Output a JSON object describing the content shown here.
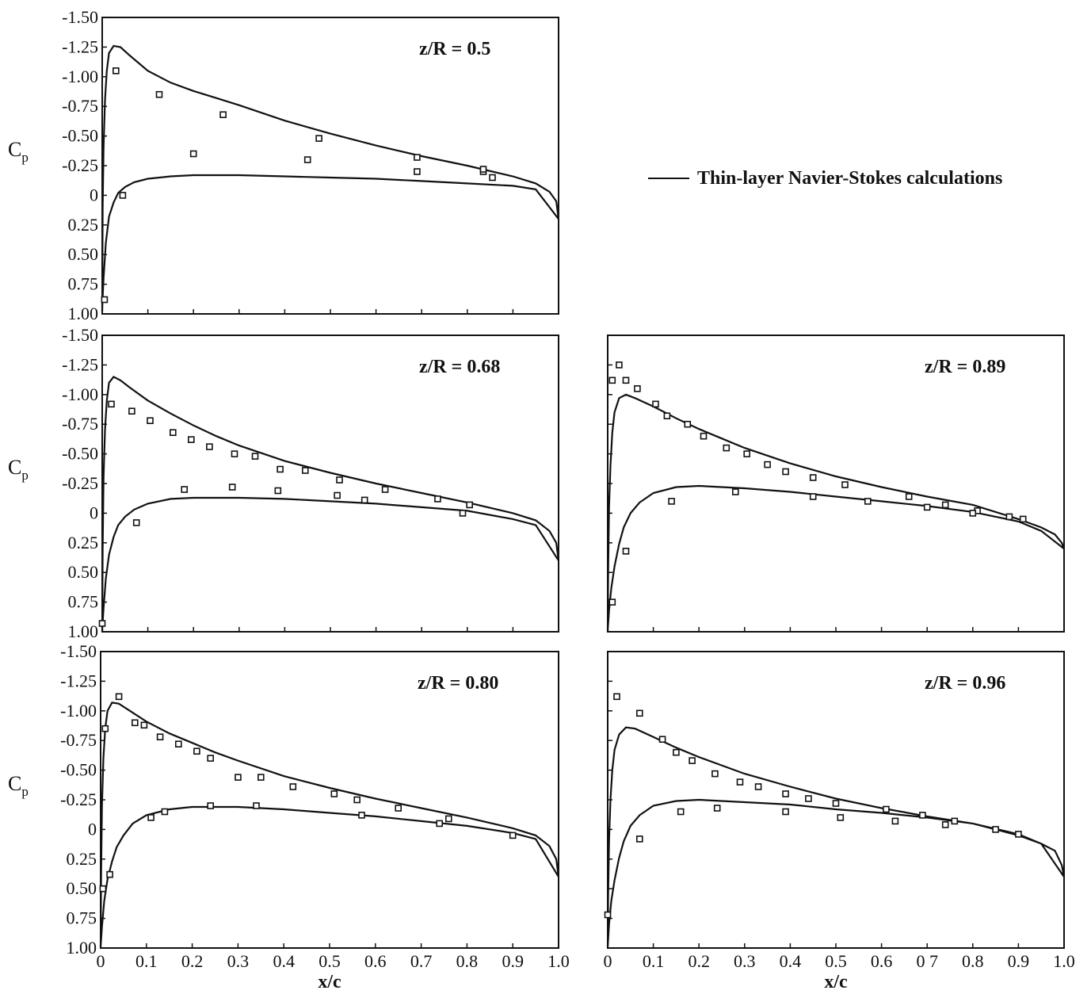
{
  "legend": {
    "label": "Thin-layer Navier-Stokes calculations"
  },
  "chart_data": [
    {
      "type": "line",
      "title": "z/R = 0.5",
      "ylabel": "C",
      "ylabel_sub": "p",
      "xlabel": "",
      "xlim": [
        0,
        1
      ],
      "ylim": [
        1.0,
        -1.5
      ],
      "y_ticks": [
        "-1.50",
        "-1.25",
        "-1.00",
        "-0.75",
        "-0.50",
        "-0.25",
        "0",
        "0.25",
        "0.50",
        "0.75",
        "1.00"
      ],
      "x_ticks": [],
      "grid": false,
      "series": [
        {
          "name": "Thin-layer Navier-Stokes calculations",
          "kind": "line",
          "x": [
            1.0,
            0.95,
            0.9,
            0.8,
            0.7,
            0.6,
            0.5,
            0.4,
            0.3,
            0.2,
            0.15,
            0.1,
            0.07,
            0.05,
            0.035,
            0.025,
            0.015,
            0.008,
            0.003,
            0.0005,
            0.0,
            0.001,
            0.003,
            0.006,
            0.01,
            0.015,
            0.025,
            0.04,
            0.06,
            0.1,
            0.15,
            0.2,
            0.25,
            0.3,
            0.4,
            0.5,
            0.6,
            0.7,
            0.8,
            0.9,
            0.95,
            0.98,
            0.995,
            1.0
          ],
          "y": [
            0.2,
            -0.05,
            -0.08,
            -0.1,
            -0.12,
            -0.14,
            -0.15,
            -0.16,
            -0.17,
            -0.17,
            -0.16,
            -0.14,
            -0.11,
            -0.07,
            -0.02,
            0.06,
            0.18,
            0.4,
            0.7,
            0.9,
            0.98,
            0.1,
            -0.4,
            -0.8,
            -1.05,
            -1.2,
            -1.26,
            -1.25,
            -1.18,
            -1.05,
            -0.95,
            -0.88,
            -0.82,
            -0.76,
            -0.63,
            -0.52,
            -0.42,
            -0.33,
            -0.25,
            -0.16,
            -0.1,
            -0.03,
            0.05,
            0.2
          ]
        },
        {
          "name": "",
          "kind": "scatter",
          "x": [
            0.005,
            0.03,
            0.045,
            0.125,
            0.2,
            0.265,
            0.45,
            0.475,
            0.69,
            0.69,
            0.835,
            0.835,
            0.855
          ],
          "y": [
            0.88,
            -1.05,
            0.0,
            -0.85,
            -0.35,
            -0.68,
            -0.3,
            -0.48,
            -0.32,
            -0.2,
            -0.2,
            -0.22,
            -0.15
          ]
        }
      ]
    },
    {
      "type": "line",
      "title": "z/R = 0.68",
      "ylabel": "C",
      "ylabel_sub": "p",
      "xlabel": "",
      "xlim": [
        0,
        1
      ],
      "ylim": [
        1.0,
        -1.5
      ],
      "y_ticks": [
        "-1.50",
        "-1.25",
        "-1.00",
        "-0.75",
        "-0.50",
        "-0.25",
        "0",
        "0.25",
        "0.50",
        "0.75",
        "1.00"
      ],
      "x_ticks": [],
      "grid": false,
      "series": [
        {
          "name": "Thin-layer Navier-Stokes calculations",
          "kind": "line",
          "x": [
            1.0,
            0.95,
            0.9,
            0.8,
            0.7,
            0.6,
            0.5,
            0.4,
            0.3,
            0.2,
            0.15,
            0.1,
            0.07,
            0.05,
            0.035,
            0.025,
            0.015,
            0.008,
            0.003,
            0.0005,
            0.0,
            0.001,
            0.003,
            0.006,
            0.01,
            0.015,
            0.025,
            0.04,
            0.06,
            0.1,
            0.15,
            0.2,
            0.25,
            0.3,
            0.4,
            0.5,
            0.6,
            0.7,
            0.8,
            0.9,
            0.95,
            0.98,
            0.995,
            1.0
          ],
          "y": [
            0.4,
            0.1,
            0.05,
            -0.02,
            -0.05,
            -0.08,
            -0.1,
            -0.12,
            -0.13,
            -0.13,
            -0.12,
            -0.08,
            -0.03,
            0.03,
            0.1,
            0.2,
            0.35,
            0.55,
            0.8,
            0.95,
            1.0,
            0.3,
            -0.3,
            -0.7,
            -0.95,
            -1.1,
            -1.15,
            -1.12,
            -1.06,
            -0.95,
            -0.84,
            -0.74,
            -0.65,
            -0.57,
            -0.44,
            -0.34,
            -0.25,
            -0.17,
            -0.09,
            0.0,
            0.06,
            0.15,
            0.25,
            0.4
          ]
        },
        {
          "name": "",
          "kind": "scatter",
          "x": [
            0.0,
            0.02,
            0.065,
            0.105,
            0.155,
            0.195,
            0.235,
            0.29,
            0.335,
            0.39,
            0.445,
            0.52,
            0.62,
            0.735,
            0.805,
            0.18,
            0.285,
            0.385,
            0.515,
            0.575,
            0.79,
            0.075
          ],
          "y": [
            0.93,
            -0.92,
            -0.86,
            -0.78,
            -0.68,
            -0.62,
            -0.56,
            -0.5,
            -0.48,
            -0.37,
            -0.36,
            -0.28,
            -0.2,
            -0.12,
            -0.07,
            -0.2,
            -0.22,
            -0.19,
            -0.15,
            -0.11,
            0.0,
            0.08
          ]
        }
      ]
    },
    {
      "type": "line",
      "title": "z/R = 0.80",
      "ylabel": "C",
      "ylabel_sub": "p",
      "xlabel": "x/c",
      "xlim": [
        0,
        1
      ],
      "ylim": [
        1.0,
        -1.5
      ],
      "y_ticks": [
        "-1.50",
        "-1.25",
        "-1.00",
        "-0.75",
        "-0.50",
        "-0.25",
        "0",
        "0.25",
        "0.50",
        "0.75",
        "1.00"
      ],
      "x_ticks": [
        "0",
        "0.1",
        "0.2",
        "0.3",
        "0.4",
        "0.5",
        "0.6",
        "0.7",
        "0.8",
        "0.9",
        "1.0"
      ],
      "grid": false,
      "series": [
        {
          "name": "Thin-layer Navier-Stokes calculations",
          "kind": "line",
          "x": [
            1.0,
            0.95,
            0.9,
            0.8,
            0.7,
            0.6,
            0.5,
            0.4,
            0.3,
            0.2,
            0.15,
            0.1,
            0.07,
            0.05,
            0.035,
            0.025,
            0.015,
            0.008,
            0.003,
            0.0005,
            0.0,
            0.001,
            0.003,
            0.006,
            0.01,
            0.015,
            0.025,
            0.04,
            0.06,
            0.1,
            0.15,
            0.2,
            0.25,
            0.3,
            0.4,
            0.5,
            0.6,
            0.7,
            0.8,
            0.9,
            0.95,
            0.98,
            0.995,
            1.0
          ],
          "y": [
            0.4,
            0.08,
            0.03,
            -0.03,
            -0.07,
            -0.11,
            -0.14,
            -0.17,
            -0.19,
            -0.19,
            -0.17,
            -0.12,
            -0.05,
            0.05,
            0.15,
            0.27,
            0.42,
            0.6,
            0.82,
            0.96,
            1.0,
            0.4,
            -0.2,
            -0.6,
            -0.85,
            -1.0,
            -1.07,
            -1.06,
            -1.01,
            -0.91,
            -0.81,
            -0.73,
            -0.65,
            -0.58,
            -0.45,
            -0.35,
            -0.26,
            -0.18,
            -0.1,
            -0.01,
            0.05,
            0.14,
            0.25,
            0.4
          ]
        },
        {
          "name": "",
          "kind": "scatter",
          "x": [
            0.01,
            0.04,
            0.075,
            0.095,
            0.13,
            0.17,
            0.21,
            0.24,
            0.3,
            0.35,
            0.42,
            0.51,
            0.56,
            0.65,
            0.74,
            0.76,
            0.9,
            0.005,
            0.02,
            0.11,
            0.14,
            0.24,
            0.34,
            0.57
          ],
          "y": [
            -0.85,
            -1.12,
            -0.9,
            -0.88,
            -0.78,
            -0.72,
            -0.66,
            -0.6,
            -0.44,
            -0.44,
            -0.36,
            -0.3,
            -0.25,
            -0.18,
            -0.05,
            -0.09,
            0.05,
            0.5,
            0.38,
            -0.1,
            -0.15,
            -0.2,
            -0.2,
            -0.12
          ]
        }
      ]
    },
    {
      "type": "line",
      "title": "z/R = 0.89",
      "ylabel": "",
      "ylabel_sub": "",
      "xlabel": "",
      "xlim": [
        0,
        1
      ],
      "ylim": [
        1.0,
        -1.5
      ],
      "y_ticks": [],
      "x_ticks": [],
      "grid": false,
      "series": [
        {
          "name": "Thin-layer Navier-Stokes calculations",
          "kind": "line",
          "x": [
            1.0,
            0.95,
            0.9,
            0.8,
            0.7,
            0.6,
            0.5,
            0.4,
            0.3,
            0.2,
            0.15,
            0.1,
            0.07,
            0.05,
            0.035,
            0.025,
            0.015,
            0.008,
            0.003,
            0.0005,
            0.0,
            0.001,
            0.003,
            0.006,
            0.01,
            0.015,
            0.025,
            0.04,
            0.06,
            0.1,
            0.15,
            0.2,
            0.25,
            0.3,
            0.4,
            0.5,
            0.6,
            0.7,
            0.8,
            0.9,
            0.95,
            0.98,
            0.995,
            1.0
          ],
          "y": [
            0.3,
            0.15,
            0.07,
            -0.01,
            -0.06,
            -0.1,
            -0.14,
            -0.18,
            -0.21,
            -0.23,
            -0.22,
            -0.17,
            -0.09,
            0.0,
            0.12,
            0.26,
            0.45,
            0.63,
            0.82,
            0.96,
            1.0,
            0.5,
            -0.05,
            -0.4,
            -0.68,
            -0.85,
            -0.97,
            -1.0,
            -0.97,
            -0.9,
            -0.8,
            -0.71,
            -0.63,
            -0.55,
            -0.42,
            -0.31,
            -0.22,
            -0.14,
            -0.07,
            0.05,
            0.12,
            0.18,
            0.25,
            0.3
          ]
        },
        {
          "name": "",
          "kind": "scatter",
          "x": [
            0.01,
            0.025,
            0.04,
            0.065,
            0.105,
            0.13,
            0.175,
            0.21,
            0.26,
            0.305,
            0.35,
            0.39,
            0.45,
            0.52,
            0.66,
            0.74,
            0.81,
            0.88,
            0.91,
            0.04,
            0.01,
            0.14,
            0.28,
            0.45,
            0.57,
            0.7,
            0.8
          ],
          "y": [
            -1.12,
            -1.25,
            -1.12,
            -1.05,
            -0.92,
            -0.82,
            -0.75,
            -0.65,
            -0.55,
            -0.5,
            -0.41,
            -0.35,
            -0.3,
            -0.24,
            -0.14,
            -0.07,
            -0.02,
            0.03,
            0.05,
            0.32,
            0.75,
            -0.1,
            -0.18,
            -0.14,
            -0.1,
            -0.05,
            0.0
          ]
        }
      ]
    },
    {
      "type": "line",
      "title": "z/R = 0.96",
      "ylabel": "",
      "ylabel_sub": "",
      "xlabel": "x/c",
      "xlim": [
        0,
        1
      ],
      "ylim": [
        1.0,
        -1.5
      ],
      "y_ticks": [],
      "x_ticks": [
        "0",
        "0.1",
        "0.2",
        "0.3",
        "0.4",
        "0.5",
        "0.6",
        "0 7",
        "0.8",
        "0.9",
        "1.0"
      ],
      "grid": false,
      "series": [
        {
          "name": "Thin-layer Navier-Stokes calculations",
          "kind": "line",
          "x": [
            1.0,
            0.95,
            0.9,
            0.8,
            0.7,
            0.6,
            0.5,
            0.4,
            0.3,
            0.2,
            0.15,
            0.1,
            0.07,
            0.05,
            0.035,
            0.025,
            0.015,
            0.008,
            0.003,
            0.0005,
            0.0,
            0.001,
            0.003,
            0.006,
            0.01,
            0.015,
            0.025,
            0.04,
            0.06,
            0.1,
            0.15,
            0.2,
            0.25,
            0.3,
            0.4,
            0.5,
            0.6,
            0.7,
            0.8,
            0.9,
            0.95,
            0.98,
            0.995,
            1.0
          ],
          "y": [
            0.4,
            0.12,
            0.04,
            -0.05,
            -0.1,
            -0.14,
            -0.17,
            -0.21,
            -0.23,
            -0.25,
            -0.24,
            -0.2,
            -0.12,
            -0.03,
            0.1,
            0.24,
            0.43,
            0.6,
            0.8,
            0.96,
            1.0,
            0.55,
            0.1,
            -0.25,
            -0.5,
            -0.67,
            -0.8,
            -0.86,
            -0.85,
            -0.78,
            -0.69,
            -0.61,
            -0.54,
            -0.47,
            -0.36,
            -0.26,
            -0.18,
            -0.11,
            -0.05,
            0.05,
            0.12,
            0.18,
            0.3,
            0.4
          ]
        },
        {
          "name": "",
          "kind": "scatter",
          "x": [
            0.02,
            0.07,
            0.12,
            0.15,
            0.185,
            0.235,
            0.29,
            0.33,
            0.39,
            0.44,
            0.5,
            0.61,
            0.69,
            0.76,
            0.85,
            0.9,
            0.0,
            0.07,
            0.16,
            0.24,
            0.39,
            0.51,
            0.63,
            0.74
          ],
          "y": [
            -1.12,
            -0.98,
            -0.76,
            -0.65,
            -0.58,
            -0.47,
            -0.4,
            -0.36,
            -0.3,
            -0.26,
            -0.22,
            -0.17,
            -0.12,
            -0.07,
            0.0,
            0.04,
            0.72,
            0.08,
            -0.15,
            -0.18,
            -0.15,
            -0.1,
            -0.07,
            -0.04
          ]
        }
      ]
    }
  ]
}
